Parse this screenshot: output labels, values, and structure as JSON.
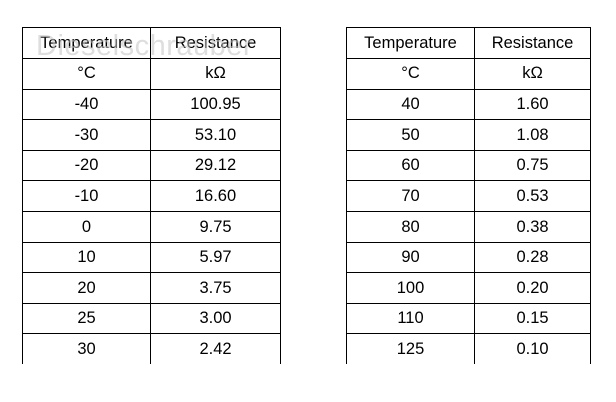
{
  "watermark": "Dieselschrauber",
  "tables": [
    {
      "headers": [
        "Temperature",
        "Resistance"
      ],
      "units": [
        "°C",
        "kΩ"
      ],
      "rows": [
        [
          "-40",
          "100.95"
        ],
        [
          "-30",
          "53.10"
        ],
        [
          "-20",
          "29.12"
        ],
        [
          "-10",
          "16.60"
        ],
        [
          "0",
          "9.75"
        ],
        [
          "10",
          "5.97"
        ],
        [
          "20",
          "3.75"
        ],
        [
          "25",
          "3.00"
        ],
        [
          "30",
          "2.42"
        ]
      ]
    },
    {
      "headers": [
        "Temperature",
        "Resistance"
      ],
      "units": [
        "°C",
        "kΩ"
      ],
      "rows": [
        [
          "40",
          "1.60"
        ],
        [
          "50",
          "1.08"
        ],
        [
          "60",
          "0.75"
        ],
        [
          "70",
          "0.53"
        ],
        [
          "80",
          "0.38"
        ],
        [
          "90",
          "0.28"
        ],
        [
          "100",
          "0.20"
        ],
        [
          "110",
          "0.15"
        ],
        [
          "125",
          "0.10"
        ]
      ]
    }
  ]
}
